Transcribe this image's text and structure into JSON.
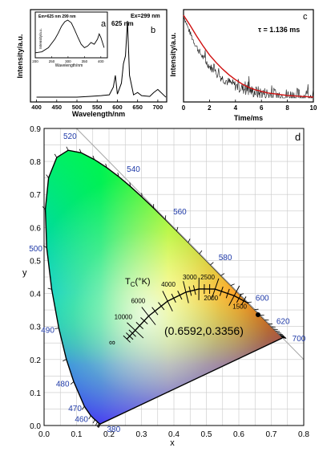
{
  "panel_a": {
    "letter": "a",
    "inset_title": "Em=625 nm 299 nm",
    "inset_ylabel": "Intensity/a.u.",
    "inset_xlabel": "Wavelength/nm",
    "inset_xticks": [
      "200",
      "250",
      "300",
      "350",
      "400"
    ]
  },
  "panel_b": {
    "letter": "b",
    "ex_label": "Ex=299 nm",
    "peak_label": "625 nm",
    "ylabel": "Intensity/a.u.",
    "xlabel": "Wavelength/nm",
    "xticks": [
      "400",
      "450",
      "500",
      "550",
      "600",
      "650",
      "700"
    ]
  },
  "panel_c": {
    "letter": "c",
    "tau_label": "τ = 1.136 ms",
    "ylabel": "Intensity/a.u.",
    "xlabel": "Time/ms",
    "xticks": [
      "0",
      "2",
      "4",
      "6",
      "8",
      "10"
    ]
  },
  "panel_d": {
    "letter": "d",
    "xlabel": "x",
    "ylabel": "y",
    "xticks": [
      "0.0",
      "0.1",
      "0.2",
      "0.3",
      "0.4",
      "0.5",
      "0.6",
      "0.7",
      "0.8"
    ],
    "yticks": [
      "0.0",
      "0.1",
      "0.2",
      "0.3",
      "0.4",
      "0.5",
      "0.6",
      "0.7",
      "0.8",
      "0.9"
    ],
    "wavelength_labels": [
      "520",
      "540",
      "560",
      "580",
      "600",
      "620",
      "700",
      "500",
      "490",
      "480",
      "470",
      "460",
      "380"
    ],
    "tc_label": "T",
    "tc_sub": "C",
    "tc_unit": "(°K)",
    "cct_labels": [
      "10000",
      "6000",
      "4000",
      "3000",
      "2500",
      "2000",
      "1500"
    ],
    "infinity": "∞",
    "coordinate_label": "(0.6592,0.3356)",
    "colors": {
      "locus": "#000000",
      "axis_label": "#1f3aa8",
      "coord_text": "#000000"
    }
  },
  "chart_data": [
    {
      "type": "line",
      "title": "",
      "xlabel": "Wavelength/nm",
      "ylabel": "Intensity/a.u.",
      "xlim": [
        200,
        420
      ],
      "annotation": "Em=625 nm 299 nm",
      "series": [
        {
          "x": [
            200,
            220,
            240,
            260,
            270,
            280,
            290,
            299,
            310,
            320,
            330,
            340,
            350,
            360,
            370,
            380,
            390,
            395,
            400,
            410
          ],
          "values": [
            0.05,
            0.08,
            0.2,
            0.45,
            0.62,
            0.82,
            0.95,
            1.0,
            0.92,
            0.72,
            0.5,
            0.3,
            0.2,
            0.25,
            0.35,
            0.3,
            0.45,
            0.6,
            0.5,
            0.2
          ]
        }
      ]
    },
    {
      "type": "line",
      "title": "",
      "xlabel": "Wavelength/nm",
      "ylabel": "Intensity/a.u.",
      "xlim": [
        400,
        720
      ],
      "annotations": [
        "Ex=299 nm",
        "625 nm"
      ],
      "series": [
        {
          "x": [
            400,
            450,
            500,
            530,
            560,
            580,
            590,
            595,
            600,
            610,
            615,
            620,
            625,
            630,
            640,
            650,
            660,
            680,
            690,
            700,
            720
          ],
          "values": [
            0.02,
            0.02,
            0.02,
            0.03,
            0.04,
            0.05,
            0.15,
            0.3,
            0.06,
            0.2,
            0.45,
            0.55,
            1.0,
            0.3,
            0.05,
            0.08,
            0.04,
            0.03,
            0.08,
            0.12,
            0.02
          ]
        }
      ]
    },
    {
      "type": "line",
      "title": "",
      "xlabel": "Time/ms",
      "ylabel": "Intensity/a.u.",
      "xlim": [
        0,
        10
      ],
      "annotation": "τ = 1.136 ms",
      "series": [
        {
          "x": [
            0,
            0.5,
            1,
            1.5,
            2,
            2.5,
            3,
            3.5,
            4,
            4.5,
            5,
            5.5,
            6,
            6.5,
            7,
            8,
            9,
            10
          ],
          "values": [
            1.0,
            0.88,
            0.75,
            0.63,
            0.52,
            0.43,
            0.35,
            0.28,
            0.22,
            0.17,
            0.13,
            0.1,
            0.08,
            0.06,
            0.05,
            0.03,
            0.02,
            0.01
          ]
        }
      ]
    },
    {
      "type": "scatter",
      "title": "",
      "xlabel": "x",
      "ylabel": "y",
      "xlim": [
        0.0,
        0.8
      ],
      "ylim": [
        0.0,
        0.9
      ],
      "grid": true,
      "point": {
        "x": 0.6592,
        "y": 0.3356,
        "label": "(0.6592,0.3356)"
      },
      "spectral_locus": {
        "x": [
          0.1741,
          0.1738,
          0.1733,
          0.1726,
          0.1714,
          0.1689,
          0.1644,
          0.1566,
          0.144,
          0.1241,
          0.0913,
          0.0687,
          0.0454,
          0.0235,
          0.0082,
          0.0039,
          0.0139,
          0.0389,
          0.0743,
          0.1142,
          0.1547,
          0.1929,
          0.2296,
          0.2658,
          0.3016,
          0.3373,
          0.3731,
          0.4087,
          0.4441,
          0.4788,
          0.5125,
          0.5448,
          0.5752,
          0.6029,
          0.627,
          0.6482,
          0.6658,
          0.6801,
          0.6915,
          0.7006,
          0.7079,
          0.714,
          0.719,
          0.723,
          0.726,
          0.7283,
          0.73,
          0.7311,
          0.732,
          0.7327,
          0.7334,
          0.734,
          0.7344,
          0.7346,
          0.7347
        ],
        "y": [
          0.005,
          0.0049,
          0.0048,
          0.0048,
          0.0051,
          0.0069,
          0.0109,
          0.0177,
          0.0297,
          0.0578,
          0.1327,
          0.2007,
          0.295,
          0.4127,
          0.5384,
          0.6548,
          0.7502,
          0.812,
          0.8338,
          0.8262,
          0.8059,
          0.7816,
          0.7543,
          0.7243,
          0.6923,
          0.6589,
          0.6245,
          0.5896,
          0.5547,
          0.5202,
          0.4866,
          0.4544,
          0.4242,
          0.3965,
          0.3725,
          0.3514,
          0.334,
          0.3197,
          0.3083,
          0.2993,
          0.292,
          0.2859,
          0.2809,
          0.277,
          0.274,
          0.2717,
          0.27,
          0.2689,
          0.268,
          0.2673,
          0.2666,
          0.266,
          0.2656,
          0.2654,
          0.2653
        ]
      },
      "planckian_locus": {
        "cct": [
          10000,
          6000,
          4000,
          3000,
          2500,
          2000,
          1500
        ],
        "x": [
          0.2807,
          0.3221,
          0.3805,
          0.4369,
          0.477,
          0.5267,
          0.5857
        ],
        "y": [
          0.2883,
          0.3318,
          0.3768,
          0.4041,
          0.4137,
          0.4133,
          0.3931
        ]
      },
      "wavelength_marks": [
        {
          "nm": "520",
          "x": 0.074,
          "y": 0.834
        },
        {
          "nm": "540",
          "x": 0.23,
          "y": 0.754
        },
        {
          "nm": "560",
          "x": 0.373,
          "y": 0.625
        },
        {
          "nm": "580",
          "x": 0.513,
          "y": 0.487
        },
        {
          "nm": "600",
          "x": 0.627,
          "y": 0.373
        },
        {
          "nm": "620",
          "x": 0.691,
          "y": 0.308
        },
        {
          "nm": "700",
          "x": 0.735,
          "y": 0.265
        },
        {
          "nm": "500",
          "x": 0.008,
          "y": 0.538
        },
        {
          "nm": "490",
          "x": 0.045,
          "y": 0.295
        },
        {
          "nm": "480",
          "x": 0.091,
          "y": 0.133
        },
        {
          "nm": "470",
          "x": 0.124,
          "y": 0.058
        },
        {
          "nm": "460",
          "x": 0.144,
          "y": 0.03
        },
        {
          "nm": "380",
          "x": 0.174,
          "y": 0.005
        }
      ]
    }
  ]
}
